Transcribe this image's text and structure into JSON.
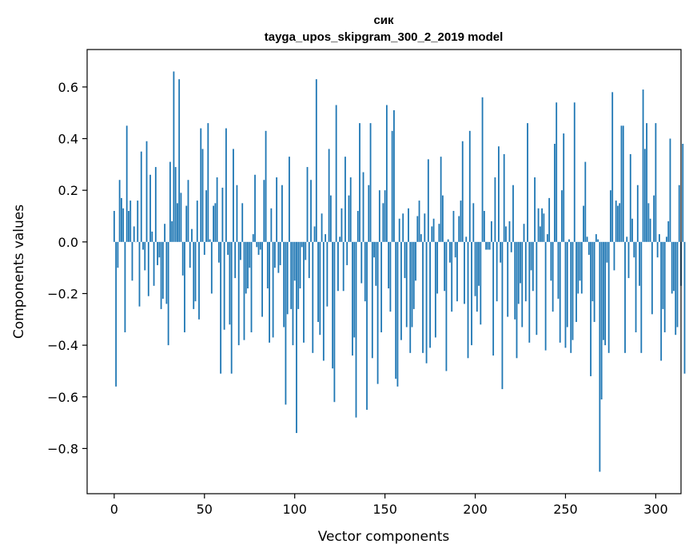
{
  "chart_data": {
    "type": "bar",
    "title": "сик",
    "subtitle": "tayga_upos_skipgram_300_2_2019 model",
    "xlabel": "Vector components",
    "ylabel": "Components values",
    "xlim": [
      -15,
      314
    ],
    "ylim": [
      -0.975,
      0.745
    ],
    "xticks": [
      0,
      50,
      100,
      150,
      200,
      250,
      300
    ],
    "yticks": [
      -0.8,
      -0.6,
      -0.4,
      -0.2,
      0.0,
      0.2,
      0.4,
      0.6
    ],
    "ytick_labels": [
      "−0.8",
      "−0.6",
      "−0.4",
      "−0.2",
      "0.0",
      "0.2",
      "0.4",
      "0.6"
    ],
    "bar_color": "#1f77b4",
    "values": [
      0.12,
      -0.56,
      -0.1,
      0.24,
      0.17,
      0.13,
      -0.35,
      0.45,
      0.12,
      0.16,
      -0.15,
      0.06,
      0.0,
      0.16,
      -0.25,
      0.35,
      -0.03,
      -0.11,
      0.39,
      -0.21,
      0.26,
      0.04,
      -0.17,
      0.29,
      -0.09,
      -0.06,
      -0.26,
      -0.22,
      0.07,
      -0.24,
      -0.4,
      0.31,
      0.08,
      0.66,
      0.29,
      0.15,
      0.63,
      0.19,
      -0.13,
      -0.35,
      0.14,
      0.24,
      -0.1,
      0.05,
      -0.26,
      -0.23,
      0.16,
      -0.3,
      0.44,
      0.36,
      -0.05,
      0.2,
      0.46,
      0.01,
      -0.2,
      0.14,
      0.15,
      0.25,
      -0.08,
      -0.51,
      0.21,
      -0.34,
      0.44,
      -0.05,
      -0.32,
      -0.51,
      0.36,
      -0.14,
      0.22,
      -0.4,
      -0.07,
      0.15,
      -0.38,
      -0.2,
      -0.18,
      -0.1,
      -0.35,
      0.03,
      0.26,
      -0.02,
      -0.05,
      -0.03,
      -0.29,
      0.24,
      0.43,
      -0.18,
      -0.39,
      0.13,
      -0.37,
      -0.1,
      0.25,
      -0.12,
      -0.09,
      0.22,
      -0.33,
      -0.63,
      -0.28,
      0.33,
      -0.26,
      -0.4,
      -0.15,
      -0.74,
      -0.26,
      -0.18,
      -0.02,
      -0.39,
      -0.07,
      0.29,
      -0.14,
      0.24,
      -0.43,
      0.06,
      0.63,
      -0.31,
      -0.36,
      0.11,
      -0.46,
      0.03,
      -0.25,
      0.36,
      0.18,
      -0.49,
      -0.62,
      0.53,
      -0.19,
      0.02,
      0.13,
      -0.19,
      0.33,
      -0.09,
      0.18,
      0.25,
      -0.44,
      -0.37,
      -0.68,
      0.12,
      0.46,
      -0.16,
      0.27,
      -0.23,
      -0.65,
      0.22,
      0.46,
      -0.45,
      -0.06,
      -0.17,
      -0.55,
      0.2,
      -0.35,
      0.15,
      0.2,
      0.53,
      -0.18,
      -0.27,
      0.43,
      0.51,
      -0.53,
      -0.56,
      0.09,
      -0.38,
      0.11,
      -0.14,
      -0.33,
      0.13,
      -0.43,
      -0.33,
      -0.26,
      -0.15,
      0.1,
      0.16,
      0.03,
      -0.43,
      0.11,
      -0.47,
      0.32,
      -0.41,
      0.06,
      0.09,
      -0.37,
      -0.2,
      0.07,
      0.33,
      0.18,
      -0.19,
      -0.5,
      0.01,
      -0.08,
      -0.27,
      0.12,
      -0.06,
      -0.23,
      0.1,
      0.16,
      0.39,
      -0.24,
      0.02,
      -0.45,
      0.43,
      -0.4,
      0.15,
      -0.21,
      -0.27,
      -0.17,
      -0.32,
      0.56,
      0.12,
      -0.03,
      -0.03,
      -0.03,
      0.08,
      -0.44,
      0.25,
      -0.23,
      0.37,
      -0.08,
      -0.57,
      0.34,
      0.06,
      -0.29,
      0.08,
      -0.04,
      0.22,
      -0.3,
      -0.45,
      -0.24,
      -0.16,
      -0.33,
      0.07,
      -0.23,
      0.46,
      -0.39,
      -0.11,
      -0.19,
      0.25,
      -0.36,
      0.13,
      0.06,
      0.13,
      0.11,
      -0.42,
      0.03,
      0.17,
      -0.15,
      -0.27,
      0.38,
      0.54,
      -0.22,
      -0.39,
      0.2,
      0.42,
      -0.41,
      -0.33,
      0.01,
      -0.43,
      -0.38,
      0.54,
      -0.31,
      -0.2,
      -0.15,
      -0.2,
      0.14,
      0.31,
      0.02,
      -0.05,
      -0.52,
      -0.23,
      -0.31,
      0.03,
      0.01,
      -0.89,
      -0.61,
      -0.38,
      -0.4,
      -0.08,
      -0.43,
      0.2,
      0.58,
      -0.11,
      0.16,
      0.14,
      0.15,
      0.45,
      0.45,
      -0.43,
      0.02,
      -0.14,
      0.34,
      0.09,
      -0.06,
      -0.35,
      0.22,
      -0.17,
      -0.43,
      0.59,
      0.36,
      0.46,
      0.15,
      0.09,
      -0.28,
      0.18,
      0.46,
      -0.06,
      0.03,
      -0.46,
      -0.26,
      -0.35,
      0.02,
      0.08,
      0.4,
      -0.2,
      -0.19,
      -0.36,
      -0.33,
      0.22,
      -0.17,
      0.38,
      -0.51
    ]
  }
}
